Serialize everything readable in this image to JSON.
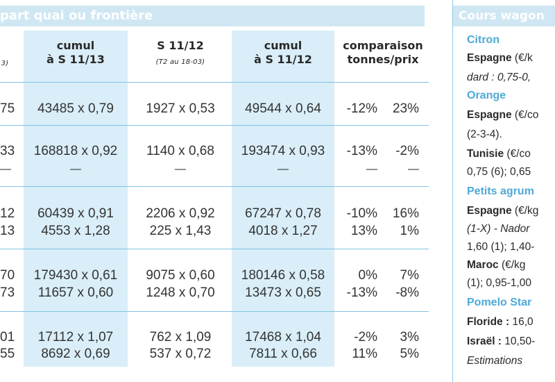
{
  "left_panel": {
    "title": "part quai ou frontière",
    "headers": {
      "col0_sub": "3)",
      "col1_line1": "cumul",
      "col1_line2": "à S 11/13",
      "col2_line1": "S 11/12",
      "col2_sub": "(T2 au 18-03)",
      "col3_line1": "cumul",
      "col3_line2": "à S 11/12",
      "col4_line1": "comparaison",
      "col4_line2": "tonnes/prix"
    },
    "rows": [
      {
        "c0": "75",
        "c1": "43485 x 0,79",
        "c2": "1927 x 0,53",
        "c3": "49544 x 0,64",
        "c4a": "-12%",
        "c4b": "23%"
      },
      {
        "c0": "33",
        "c1": "168818 x 0,92",
        "c2": "1140 x 0,68",
        "c3": "193474 x 0,93",
        "c4a": "-13%",
        "c4b": "-2%"
      },
      {
        "c0": "—",
        "c1": "—",
        "c2": "—",
        "c3": "—",
        "c4a": "—",
        "c4b": "—"
      },
      {
        "c0": "12",
        "c1": "60439 x 0,91",
        "c2": "2206 x 0,92",
        "c3": "67247 x 0,78",
        "c4a": "-10%",
        "c4b": "16%"
      },
      {
        "c0": "13",
        "c1": "4553 x 1,28",
        "c2": "225 x 1,43",
        "c3": "4018 x 1,27",
        "c4a": "13%",
        "c4b": "1%"
      },
      {
        "c0": "70",
        "c1": "179430 x 0,61",
        "c2": "9075 x 0,60",
        "c3": "180146 x 0,58",
        "c4a": "0%",
        "c4b": "7%"
      },
      {
        "c0": "73",
        "c1": "11657 x 0,60",
        "c2": "1248 x 0,70",
        "c3": "13473 x 0,65",
        "c4a": "-13%",
        "c4b": "-8%"
      },
      {
        "c0": "01",
        "c1": "17112 x 1,07",
        "c2": "762 x 1,09",
        "c3": "17468 x 1,04",
        "c4a": "-2%",
        "c4b": "3%"
      },
      {
        "c0": "55",
        "c1": "8692 x 0,69",
        "c2": "537 x 0,72",
        "c3": "7811 x 0,66",
        "c4a": "11%",
        "c4b": "5%"
      }
    ]
  },
  "sidebar": {
    "title": "Cours wagon",
    "lines": [
      {
        "kind": "head",
        "text": "Citron"
      },
      {
        "kind": "bold",
        "text": "Espagne",
        "rest": " (€/k"
      },
      {
        "kind": "ital",
        "text": "dard : 0,75-0,"
      },
      {
        "kind": "head",
        "text": "Orange"
      },
      {
        "kind": "bold",
        "text": "Espagne",
        "rest": " (€/co"
      },
      {
        "kind": "plain",
        "text": "(2-3-4)."
      },
      {
        "kind": "bold",
        "text": "Tunisie",
        "rest": " (€/co"
      },
      {
        "kind": "plain",
        "text": "0,75 (6); 0,65"
      },
      {
        "kind": "head",
        "text": "Petits agrum"
      },
      {
        "kind": "bold",
        "text": "Espagne",
        "rest": " (€/kg"
      },
      {
        "kind": "ital",
        "text": "(1-X) - Nador"
      },
      {
        "kind": "plain",
        "text": "1,60 (1); 1,40-"
      },
      {
        "kind": "bold",
        "text": "Maroc",
        "rest": " (€/kg"
      },
      {
        "kind": "plain",
        "text": "(1); 0,95-1,00"
      },
      {
        "kind": "head",
        "text": "Pomelo Star"
      },
      {
        "kind": "bold",
        "text": "Floride :",
        "rest": " 16,0"
      },
      {
        "kind": "bold",
        "text": "Israël :",
        "rest": " 10,50-"
      },
      {
        "kind": "ital",
        "text": "Estimations"
      }
    ]
  },
  "colors": {
    "title_bar": "#cfe7f3",
    "column_shade": "#d9eef8",
    "rule": "#7fc4e3",
    "accent_text": "#4ea9d6"
  }
}
